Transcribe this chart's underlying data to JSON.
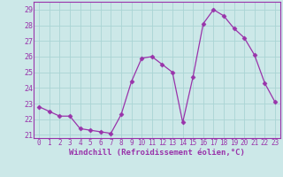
{
  "x": [
    0,
    1,
    2,
    3,
    4,
    5,
    6,
    7,
    8,
    9,
    10,
    11,
    12,
    13,
    14,
    15,
    16,
    17,
    18,
    19,
    20,
    21,
    22,
    23
  ],
  "y": [
    22.8,
    22.5,
    22.2,
    22.2,
    21.4,
    21.3,
    21.2,
    21.1,
    22.3,
    24.4,
    25.9,
    26.0,
    25.5,
    25.0,
    21.8,
    24.7,
    28.1,
    29.0,
    28.6,
    27.8,
    27.2,
    26.1,
    24.3,
    23.1
  ],
  "line_color": "#9933aa",
  "marker": "D",
  "marker_size": 2.5,
  "background_color": "#cce8e8",
  "grid_color": "#aad4d4",
  "xlabel": "Windchill (Refroidissement éolien,°C)",
  "xlabel_fontsize": 6.5,
  "xlabel_fontweight": "bold",
  "xtick_fontsize": 5.5,
  "ytick_fontsize": 6,
  "ylim": [
    20.8,
    29.5
  ],
  "xlim": [
    -0.5,
    23.5
  ],
  "yticks": [
    21,
    22,
    23,
    24,
    25,
    26,
    27,
    28,
    29
  ]
}
